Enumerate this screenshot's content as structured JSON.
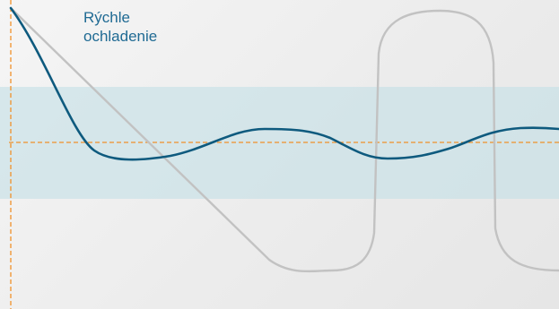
{
  "annotation": {
    "line1": "Rýchle",
    "line2": "ochladenie"
  },
  "colors": {
    "band_fill": "#c3dfe6",
    "reference_dashed": "#f0912a",
    "main_curve": "#0e5a7e",
    "grey_curves": "#c2c2c2",
    "annotation_text": "#1f6a93"
  }
}
